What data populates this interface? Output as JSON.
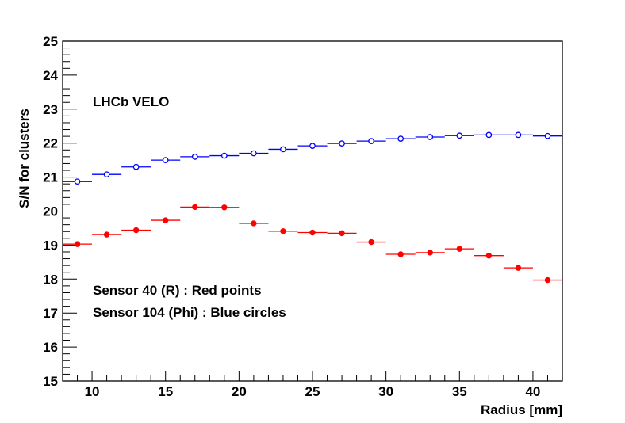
{
  "chart_data": {
    "type": "scatter",
    "title": "",
    "xlabel": "Radius [mm]",
    "ylabel": "S/N for clusters",
    "xlim": [
      8,
      42
    ],
    "ylim": [
      15,
      25
    ],
    "xticks": [
      10,
      15,
      20,
      25,
      30,
      35,
      40
    ],
    "yticks": [
      15,
      16,
      17,
      18,
      19,
      20,
      21,
      22,
      23,
      24,
      25
    ],
    "bin_half_width": 1,
    "annotations": {
      "experiment": "LHCb VELO",
      "legend_line1": "Sensor 40 (R) : Red points",
      "legend_line2": "Sensor 104 (Phi) : Blue circles"
    },
    "series": [
      {
        "name": "Sensor 40 (R)",
        "color": "#ff0000",
        "marker": "filled-circle",
        "x": [
          9,
          11,
          13,
          15,
          17,
          19,
          21,
          23,
          25,
          27,
          29,
          31,
          33,
          35,
          37,
          39,
          41
        ],
        "values": [
          19.03,
          19.31,
          19.44,
          19.73,
          20.12,
          20.11,
          19.64,
          19.41,
          19.37,
          19.35,
          19.09,
          18.73,
          18.78,
          18.89,
          18.69,
          18.33,
          17.97
        ]
      },
      {
        "name": "Sensor 104 (Phi)",
        "color": "#0000ff",
        "marker": "open-circle",
        "x": [
          9,
          11,
          13,
          15,
          17,
          19,
          21,
          23,
          25,
          27,
          29,
          31,
          33,
          35,
          37,
          39,
          41
        ],
        "values": [
          20.87,
          21.08,
          21.3,
          21.5,
          21.6,
          21.63,
          21.7,
          21.82,
          21.92,
          21.99,
          22.06,
          22.13,
          22.18,
          22.22,
          22.24,
          22.24,
          22.21
        ]
      }
    ]
  }
}
